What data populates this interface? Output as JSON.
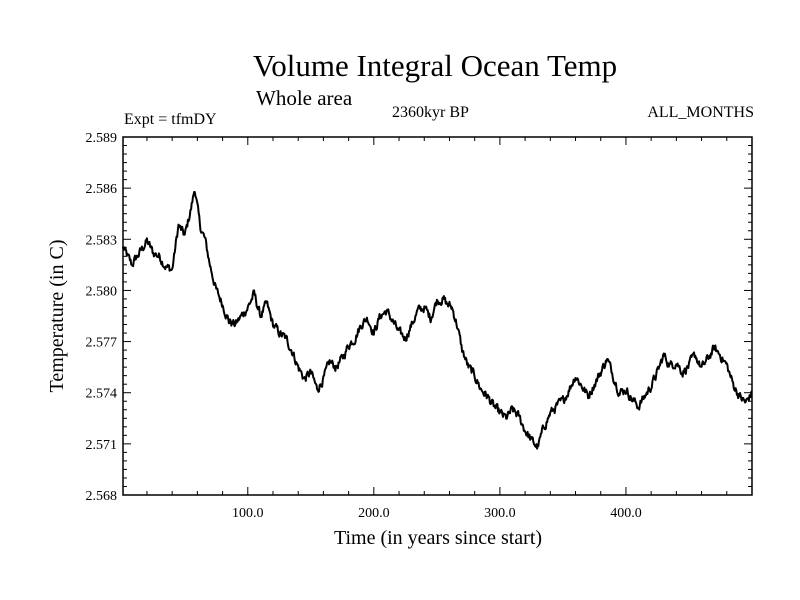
{
  "header": {
    "title": "Volume Integral Ocean Temp",
    "subtitle": "Whole area",
    "left_label": "Expt = tfmDY",
    "center_label": "2360kyr BP",
    "right_label": "ALL_MONTHS"
  },
  "chart_data": {
    "type": "line",
    "title": "Volume Integral Ocean Temp",
    "subtitle": "Whole area",
    "xlabel": "Time (in years since start)",
    "ylabel": "Temperature (in C)",
    "xlim": [
      1,
      500
    ],
    "ylim": [
      2.568,
      2.589
    ],
    "x_ticks": [
      100,
      200,
      300,
      400
    ],
    "x_tick_labels": [
      "100.0",
      "200.0",
      "300.0",
      "400.0"
    ],
    "y_ticks": [
      2.568,
      2.571,
      2.574,
      2.577,
      2.58,
      2.583,
      2.586,
      2.589
    ],
    "y_tick_labels": [
      "2.568",
      "2.571",
      "2.574",
      "2.577",
      "2.580",
      "2.583",
      "2.586",
      "2.589"
    ],
    "line_color": "#000000",
    "series": [
      {
        "name": "Volume Integral Ocean Temp",
        "anchor_x": [
          1,
          8,
          15,
          20,
          25,
          30,
          35,
          40,
          45,
          50,
          55,
          58,
          62,
          66,
          70,
          75,
          80,
          85,
          90,
          95,
          100,
          105,
          110,
          115,
          120,
          125,
          130,
          135,
          140,
          145,
          150,
          155,
          160,
          165,
          170,
          175,
          180,
          185,
          190,
          195,
          200,
          205,
          210,
          215,
          220,
          225,
          230,
          235,
          240,
          245,
          250,
          255,
          258,
          262,
          266,
          270,
          275,
          280,
          285,
          290,
          295,
          300,
          305,
          310,
          315,
          320,
          325,
          330,
          335,
          340,
          345,
          350,
          355,
          360,
          365,
          370,
          375,
          380,
          385,
          390,
          395,
          400,
          405,
          410,
          415,
          420,
          425,
          430,
          435,
          440,
          445,
          450,
          455,
          460,
          465,
          470,
          475,
          480,
          485,
          490,
          495,
          500
        ],
        "anchor_y": [
          2.5825,
          2.5815,
          2.5823,
          2.5829,
          2.5822,
          2.582,
          2.5814,
          2.5812,
          2.5838,
          2.5832,
          2.5848,
          2.586,
          2.5838,
          2.583,
          2.5815,
          2.58,
          2.5792,
          2.5782,
          2.578,
          2.5785,
          2.579,
          2.5798,
          2.5785,
          2.5792,
          2.578,
          2.5775,
          2.5772,
          2.5765,
          2.5755,
          2.5748,
          2.5752,
          2.5742,
          2.5748,
          2.5758,
          2.5755,
          2.576,
          2.5768,
          2.5772,
          2.578,
          2.5784,
          2.5775,
          2.5785,
          2.5788,
          2.5782,
          2.5775,
          2.5772,
          2.578,
          2.5788,
          2.579,
          2.5784,
          2.5794,
          2.5795,
          2.5792,
          2.579,
          2.578,
          2.5765,
          2.5755,
          2.575,
          2.5742,
          2.5738,
          2.5732,
          2.5728,
          2.5725,
          2.573,
          2.5726,
          2.5718,
          2.5712,
          2.5708,
          2.572,
          2.5728,
          2.5732,
          2.5735,
          2.5742,
          2.575,
          2.5744,
          2.5738,
          2.5745,
          2.5752,
          2.576,
          2.575,
          2.574,
          2.5742,
          2.5736,
          2.5732,
          2.5738,
          2.5744,
          2.5752,
          2.5762,
          2.5756,
          2.5758,
          2.5752,
          2.5756,
          2.5762,
          2.5754,
          2.576,
          2.5766,
          2.5762,
          2.5756,
          2.5745,
          2.5738,
          2.5734,
          2.574
        ]
      }
    ]
  }
}
